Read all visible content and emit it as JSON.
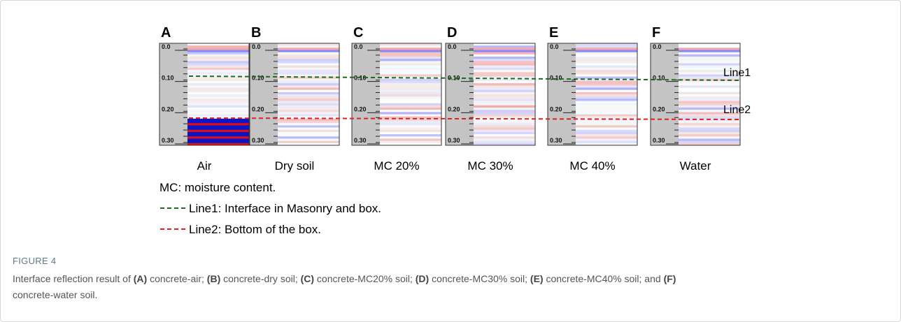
{
  "figure": {
    "panels": [
      {
        "letter": "A",
        "label": "Air"
      },
      {
        "letter": "B",
        "label": "Dry soil"
      },
      {
        "letter": "C",
        "label": "MC 20%"
      },
      {
        "letter": "D",
        "label": "MC 30%"
      },
      {
        "letter": "E",
        "label": "MC 40%"
      },
      {
        "letter": "F",
        "label": "Water"
      }
    ],
    "depth_ticks": [
      "0.0",
      "0.10",
      "0.20",
      "0.30"
    ],
    "line_labels": [
      "Line1",
      "Line2"
    ],
    "legend": [
      "MC: moisture content.",
      "Line1: Interface in Masonry and box.",
      "Line2: Bottom of the box."
    ]
  },
  "caption": {
    "label": "FIGURE 4",
    "segments": [
      {
        "text": "Interface reflection result of ",
        "bold": false
      },
      {
        "text": "(A)",
        "bold": true
      },
      {
        "text": " concrete-air; ",
        "bold": false
      },
      {
        "text": "(B)",
        "bold": true
      },
      {
        "text": " concrete-dry soil; ",
        "bold": false
      },
      {
        "text": "(C)",
        "bold": true
      },
      {
        "text": " concrete-MC20% soil; ",
        "bold": false
      },
      {
        "text": "(D)",
        "bold": true
      },
      {
        "text": " concrete-MC30% soil; ",
        "bold": false
      },
      {
        "text": "(E)",
        "bold": true
      },
      {
        "text": " concrete-MC40% soil; and ",
        "bold": false
      },
      {
        "text": "(F)",
        "bold": true
      },
      {
        "text": " concrete-water soil.",
        "bold": false
      }
    ]
  }
}
